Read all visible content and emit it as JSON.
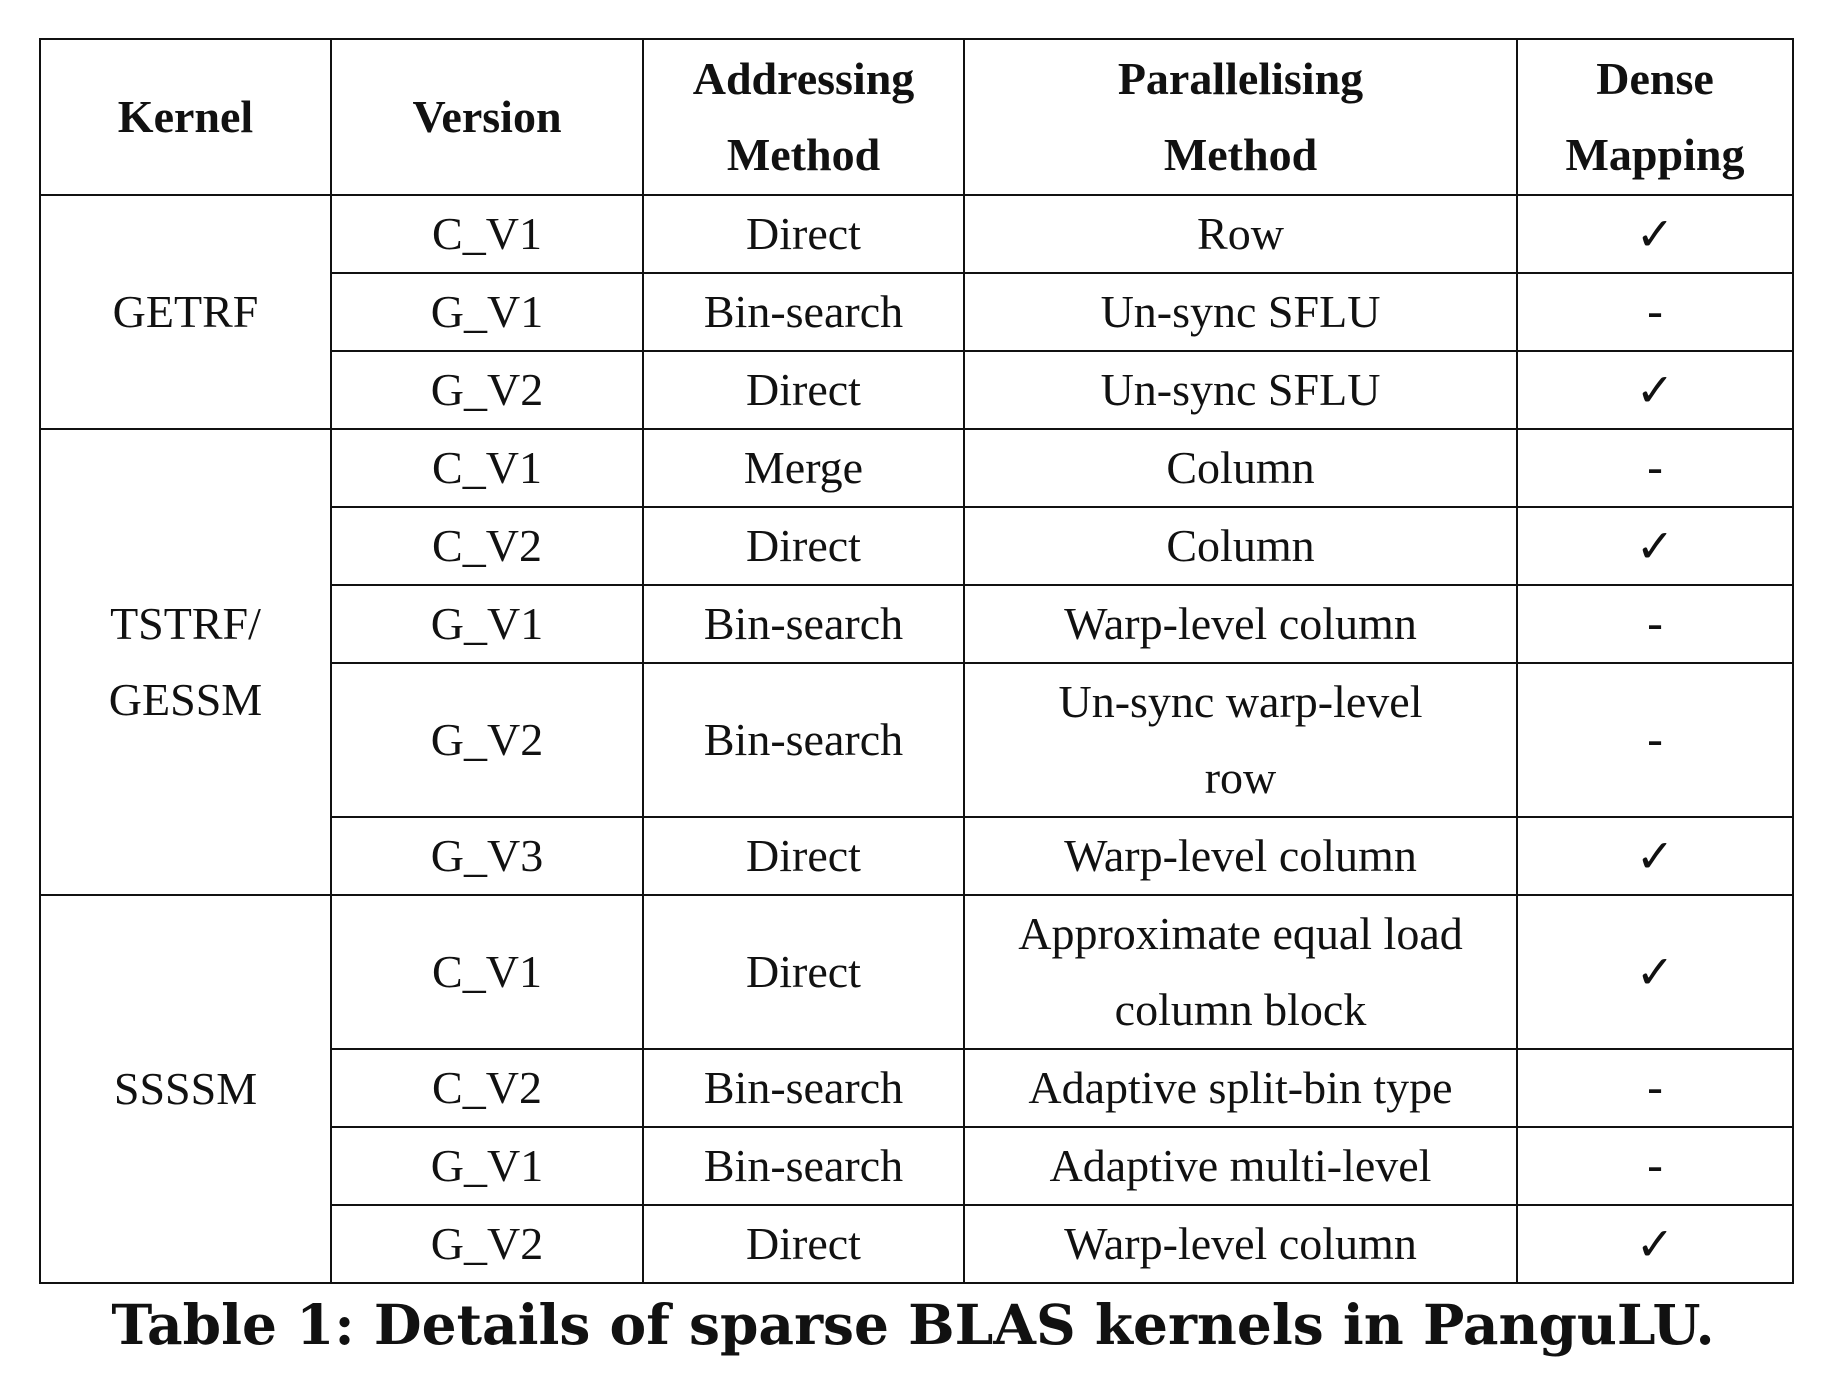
{
  "table": {
    "headers": {
      "kernel": "Kernel",
      "version": "Version",
      "addressing_line1": "Addressing",
      "addressing_line2": "Method",
      "parallelising_line1": "Parallelising",
      "parallelising_line2": "Method",
      "dense_line1": "Dense",
      "dense_line2": "Mapping"
    },
    "groups": [
      {
        "kernel": "GETRF",
        "rows": [
          {
            "version": "C_V1",
            "addressing": "Direct",
            "parallel": "Row",
            "dense": "✓"
          },
          {
            "version": "G_V1",
            "addressing": "Bin-search",
            "parallel": "Un-sync SFLU",
            "dense": "-"
          },
          {
            "version": "G_V2",
            "addressing": "Direct",
            "parallel": "Un-sync SFLU",
            "dense": "✓"
          }
        ]
      },
      {
        "kernel_line1": "TSTRF/",
        "kernel_line2": "GESSM",
        "rows": [
          {
            "version": "C_V1",
            "addressing": "Merge",
            "parallel": "Column",
            "dense": "-"
          },
          {
            "version": "C_V2",
            "addressing": "Direct",
            "parallel": "Column",
            "dense": "✓"
          },
          {
            "version": "G_V1",
            "addressing": "Bin-search",
            "parallel": "Warp-level column",
            "dense": "-"
          },
          {
            "version": "G_V2",
            "addressing": "Bin-search",
            "parallel_line1": "Un-sync warp-level",
            "parallel_line2": "row",
            "dense": "-"
          },
          {
            "version": "G_V3",
            "addressing": "Direct",
            "parallel": "Warp-level column",
            "dense": "✓"
          }
        ]
      },
      {
        "kernel": "SSSSM",
        "rows": [
          {
            "version": "C_V1",
            "addressing": "Direct",
            "parallel_line1": "Approximate equal load",
            "parallel_line2": "column block",
            "dense": "✓"
          },
          {
            "version": "C_V2",
            "addressing": "Bin-search",
            "parallel": "Adaptive split-bin type",
            "dense": "-"
          },
          {
            "version": "G_V1",
            "addressing": "Bin-search",
            "parallel": "Adaptive multi-level",
            "dense": "-"
          },
          {
            "version": "G_V2",
            "addressing": "Direct",
            "parallel": "Warp-level column",
            "dense": "✓"
          }
        ]
      }
    ]
  },
  "caption": "Table 1: Details of sparse BLAS kernels in PanguLU."
}
